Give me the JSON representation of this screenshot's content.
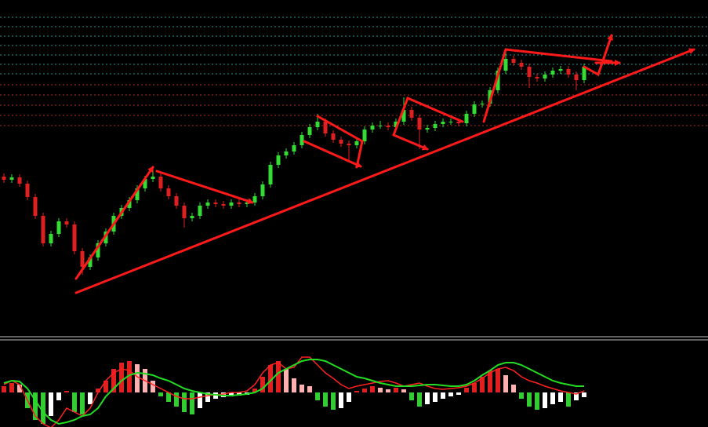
{
  "chart_data": [
    {
      "type": "candlestick",
      "up_color": "#33dd33",
      "down_color": "#e02020",
      "ylim": [
        0,
        430
      ],
      "open": [
        205,
        201,
        204,
        196,
        179,
        155,
        120,
        132,
        148,
        144,
        110,
        90,
        102,
        120,
        135,
        155,
        165,
        175,
        190,
        202,
        205,
        190,
        180,
        168,
        152,
        155,
        168,
        172,
        170,
        168,
        172,
        170,
        172,
        180,
        195,
        220,
        232,
        237,
        245,
        258,
        268,
        275,
        260,
        252,
        247,
        245,
        250,
        265,
        270,
        270,
        268,
        275,
        290,
        280,
        265,
        267,
        272,
        275,
        275,
        273,
        285,
        297,
        298,
        315,
        340,
        355,
        350,
        345,
        332,
        330,
        335,
        340,
        342,
        335,
        328
      ],
      "high": [
        209,
        208,
        208,
        200,
        183,
        159,
        136,
        152,
        152,
        148,
        114,
        106,
        124,
        139,
        159,
        169,
        179,
        194,
        206,
        215,
        209,
        194,
        184,
        172,
        159,
        172,
        176,
        176,
        174,
        176,
        176,
        176,
        184,
        199,
        224,
        236,
        241,
        249,
        262,
        272,
        285,
        279,
        264,
        256,
        251,
        254,
        269,
        274,
        276,
        274,
        279,
        306,
        294,
        284,
        271,
        276,
        279,
        279,
        279,
        289,
        301,
        302,
        319,
        344,
        365,
        359,
        354,
        349,
        336,
        339,
        344,
        346,
        346,
        339,
        349
      ],
      "low": [
        197,
        197,
        192,
        175,
        151,
        116,
        116,
        128,
        140,
        106,
        80,
        86,
        98,
        116,
        131,
        151,
        161,
        171,
        186,
        198,
        186,
        176,
        164,
        140,
        148,
        151,
        164,
        166,
        164,
        164,
        166,
        166,
        168,
        176,
        191,
        216,
        228,
        233,
        241,
        254,
        264,
        256,
        248,
        243,
        225,
        241,
        246,
        261,
        266,
        264,
        264,
        271,
        276,
        240,
        261,
        263,
        268,
        271,
        269,
        269,
        281,
        293,
        294,
        311,
        336,
        346,
        341,
        318,
        326,
        326,
        331,
        336,
        331,
        315,
        324
      ],
      "close": [
        201,
        204,
        196,
        179,
        155,
        120,
        132,
        148,
        144,
        110,
        90,
        102,
        120,
        135,
        155,
        165,
        175,
        190,
        202,
        205,
        190,
        180,
        168,
        152,
        155,
        168,
        172,
        170,
        168,
        172,
        170,
        172,
        180,
        195,
        220,
        232,
        237,
        245,
        258,
        268,
        275,
        260,
        252,
        247,
        245,
        250,
        265,
        270,
        270,
        268,
        275,
        290,
        280,
        265,
        267,
        272,
        275,
        275,
        273,
        285,
        297,
        298,
        315,
        340,
        355,
        350,
        345,
        332,
        330,
        335,
        340,
        342,
        335,
        328,
        345
      ]
    },
    {
      "type": "macd",
      "ylim": [
        -44,
        60
      ],
      "values": [
        8,
        12,
        10,
        -20,
        -35,
        -40,
        -30,
        -10,
        2,
        -25,
        -28,
        -15,
        5,
        15,
        30,
        38,
        40,
        36,
        30,
        15,
        -5,
        -12,
        -18,
        -25,
        -28,
        -20,
        -12,
        -8,
        -6,
        -5,
        -4,
        -3,
        5,
        20,
        35,
        40,
        30,
        18,
        10,
        8,
        -10,
        -18,
        -22,
        -20,
        -12,
        2,
        5,
        8,
        6,
        4,
        6,
        4,
        -10,
        -18,
        -15,
        -12,
        -8,
        -5,
        -3,
        6,
        12,
        20,
        28,
        30,
        22,
        10,
        -8,
        -18,
        -22,
        -20,
        -15,
        -12,
        -18,
        -10,
        -6
      ],
      "series": [
        {
          "color": "#ff2020",
          "values": [
            10,
            15,
            10,
            -10,
            -30,
            -40,
            -45,
            -35,
            -20,
            -25,
            -30,
            -20,
            0,
            15,
            25,
            30,
            28,
            20,
            15,
            10,
            5,
            0,
            -5,
            -8,
            -8,
            -6,
            -4,
            -3,
            -2,
            0,
            0,
            2,
            10,
            25,
            35,
            38,
            30,
            32,
            45,
            45,
            35,
            25,
            18,
            10,
            5,
            8,
            10,
            12,
            14,
            15,
            12,
            8,
            10,
            12,
            8,
            5,
            4,
            5,
            6,
            8,
            12,
            18,
            25,
            30,
            32,
            28,
            20,
            15,
            12,
            8,
            5,
            2,
            0,
            -2,
            2
          ]
        },
        {
          "color": "#22dd22",
          "values": [
            12,
            15,
            14,
            5,
            -10,
            -25,
            -35,
            -40,
            -38,
            -35,
            -30,
            -28,
            -20,
            -5,
            5,
            15,
            22,
            25,
            24,
            22,
            18,
            15,
            10,
            5,
            2,
            0,
            -2,
            -3,
            -4,
            -4,
            -3,
            -2,
            0,
            5,
            15,
            25,
            30,
            35,
            40,
            42,
            42,
            40,
            35,
            30,
            25,
            20,
            18,
            15,
            12,
            10,
            8,
            8,
            8,
            9,
            10,
            10,
            9,
            8,
            8,
            10,
            15,
            22,
            28,
            35,
            38,
            38,
            35,
            30,
            25,
            20,
            15,
            12,
            10,
            8,
            8
          ]
        }
      ]
    }
  ]
}
